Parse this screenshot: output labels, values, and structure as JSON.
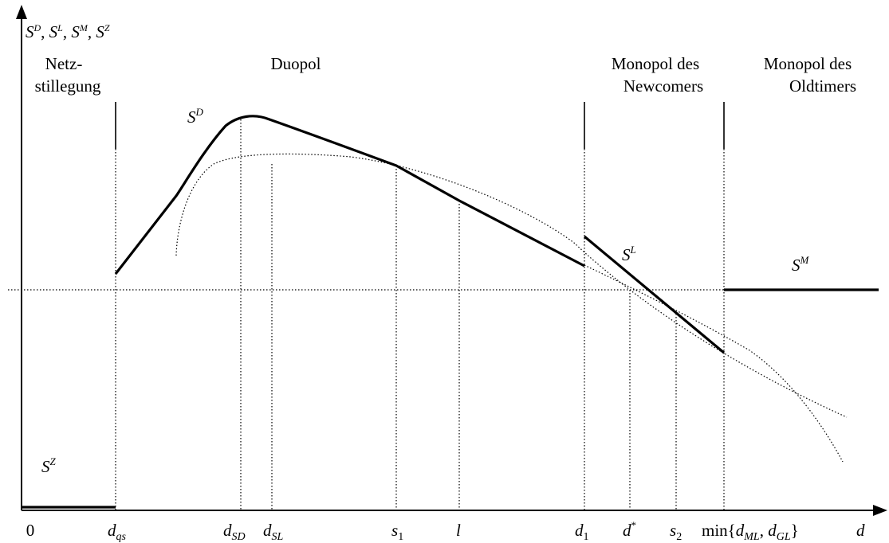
{
  "y_axis_label": {
    "parts": [
      "S",
      "D",
      ", ",
      "S",
      "L",
      ",  ",
      "S",
      "M",
      ", ",
      "S",
      "Z"
    ]
  },
  "regions": {
    "shutdown": {
      "line1": "Netz-",
      "line2": "stillegung"
    },
    "duopoly": {
      "label": "Duopol"
    },
    "newcomer_monopoly": {
      "line1": "Monopol des",
      "line2": "Newcomers"
    },
    "oldtimer_monopoly": {
      "line1": "Monopol des",
      "line2": "Oldtimers"
    }
  },
  "curve_labels": {
    "SD": {
      "base": "S",
      "sup": "D"
    },
    "SL": {
      "base": "S",
      "sup": "L"
    },
    "SM": {
      "base": "S",
      "sup": "M"
    },
    "SZ": {
      "base": "S",
      "sup": "Z"
    }
  },
  "x_ticks": {
    "zero": "0",
    "dqs": {
      "base": "d",
      "sub": "qs"
    },
    "dSD": {
      "base": "d",
      "sub": "SD"
    },
    "dSL": {
      "base": "d",
      "sub": "SL"
    },
    "s1": {
      "base": "s",
      "sub": "1"
    },
    "l": "l",
    "d1": {
      "base": "d",
      "sub": "1"
    },
    "dstar": {
      "base": "d",
      "sup": "*"
    },
    "s2": {
      "base": "s",
      "sub": "2"
    },
    "min": {
      "prefix": "min{",
      "a_base": "d",
      "a_sub": "ML",
      "sep": ", ",
      "b_base": "d",
      "b_sub": "GL",
      "suffix": "}"
    },
    "d": "d"
  }
}
